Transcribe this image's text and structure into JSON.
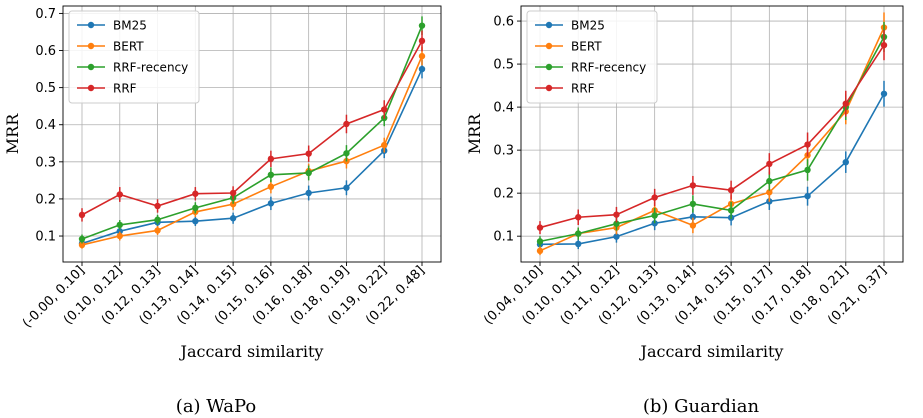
{
  "chart_data": [
    {
      "type": "line",
      "caption": "(a) WaPo",
      "xlabel": "Jaccard similarity",
      "ylabel": "MRR",
      "categories": [
        "(-0.00, 0.10]",
        "(0.10, 0.12]",
        "(0.12, 0.13]",
        "(0.13, 0.14]",
        "(0.14, 0.15]",
        "(0.15, 0.16]",
        "(0.16, 0.18]",
        "(0.18, 0.19]",
        "(0.19, 0.22]",
        "(0.22, 0.48]"
      ],
      "ylim": [
        0.03,
        0.72
      ],
      "yticks": [
        0.1,
        0.2,
        0.3,
        0.4,
        0.5,
        0.6,
        0.7
      ],
      "ytick_labels": [
        "0.1",
        "0.2",
        "0.3",
        "0.4",
        "0.5",
        "0.6",
        "0.7"
      ],
      "grid": true,
      "legend": "top-left",
      "series": [
        {
          "name": "BM25",
          "color": "#1f77b4",
          "values": [
            0.08,
            0.113,
            0.137,
            0.14,
            0.148,
            0.188,
            0.216,
            0.23,
            0.33,
            0.55
          ],
          "errors": [
            0.01,
            0.012,
            0.012,
            0.013,
            0.015,
            0.018,
            0.02,
            0.02,
            0.02,
            0.025
          ]
        },
        {
          "name": "BERT",
          "color": "#ff7f0e",
          "values": [
            0.076,
            0.1,
            0.115,
            0.165,
            0.186,
            0.233,
            0.275,
            0.302,
            0.345,
            0.585
          ],
          "errors": [
            0.01,
            0.012,
            0.012,
            0.014,
            0.016,
            0.018,
            0.02,
            0.02,
            0.02,
            0.025
          ]
        },
        {
          "name": "RRF-recency",
          "color": "#2ca02c",
          "values": [
            0.092,
            0.13,
            0.144,
            0.176,
            0.203,
            0.265,
            0.27,
            0.323,
            0.418,
            0.667
          ],
          "errors": [
            0.012,
            0.013,
            0.013,
            0.015,
            0.016,
            0.02,
            0.02,
            0.022,
            0.022,
            0.025
          ]
        },
        {
          "name": "RRF",
          "color": "#d62728",
          "values": [
            0.157,
            0.212,
            0.181,
            0.214,
            0.216,
            0.308,
            0.322,
            0.402,
            0.441,
            0.626
          ],
          "errors": [
            0.018,
            0.02,
            0.018,
            0.018,
            0.018,
            0.022,
            0.022,
            0.025,
            0.025,
            0.028
          ]
        }
      ]
    },
    {
      "type": "line",
      "caption": "(b) Guardian",
      "xlabel": "Jaccard similarity",
      "ylabel": "MRR",
      "categories": [
        "(0.04, 0.10]",
        "(0.10, 0.11]",
        "(0.11, 0.12]",
        "(0.12, 0.13]",
        "(0.13, 0.14]",
        "(0.14, 0.15]",
        "(0.15, 0.17]",
        "(0.17, 0.18]",
        "(0.18, 0.21]",
        "(0.21, 0.37]"
      ],
      "ylim": [
        0.04,
        0.635
      ],
      "yticks": [
        0.1,
        0.2,
        0.3,
        0.4,
        0.5,
        0.6
      ],
      "ytick_labels": [
        "0.1",
        "0.2",
        "0.3",
        "0.4",
        "0.5",
        "0.6"
      ],
      "grid": true,
      "legend": "top-left",
      "series": [
        {
          "name": "BM25",
          "color": "#1f77b4",
          "values": [
            0.081,
            0.082,
            0.099,
            0.13,
            0.145,
            0.143,
            0.181,
            0.193,
            0.272,
            0.431
          ],
          "errors": [
            0.012,
            0.012,
            0.014,
            0.016,
            0.018,
            0.018,
            0.02,
            0.022,
            0.025,
            0.03
          ]
        },
        {
          "name": "BERT",
          "color": "#ff7f0e",
          "values": [
            0.066,
            0.106,
            0.12,
            0.16,
            0.125,
            0.175,
            0.202,
            0.288,
            0.39,
            0.585
          ],
          "errors": [
            0.01,
            0.014,
            0.016,
            0.02,
            0.018,
            0.02,
            0.022,
            0.025,
            0.03,
            0.035
          ]
        },
        {
          "name": "RRF-recency",
          "color": "#2ca02c",
          "values": [
            0.088,
            0.106,
            0.129,
            0.148,
            0.175,
            0.16,
            0.228,
            0.254,
            0.4,
            0.563
          ],
          "errors": [
            0.012,
            0.014,
            0.016,
            0.018,
            0.02,
            0.02,
            0.022,
            0.025,
            0.03,
            0.035
          ]
        },
        {
          "name": "RRF",
          "color": "#d62728",
          "values": [
            0.12,
            0.144,
            0.15,
            0.19,
            0.218,
            0.207,
            0.268,
            0.313,
            0.408,
            0.544
          ],
          "errors": [
            0.015,
            0.018,
            0.018,
            0.02,
            0.022,
            0.022,
            0.025,
            0.028,
            0.03,
            0.035
          ]
        }
      ]
    }
  ]
}
